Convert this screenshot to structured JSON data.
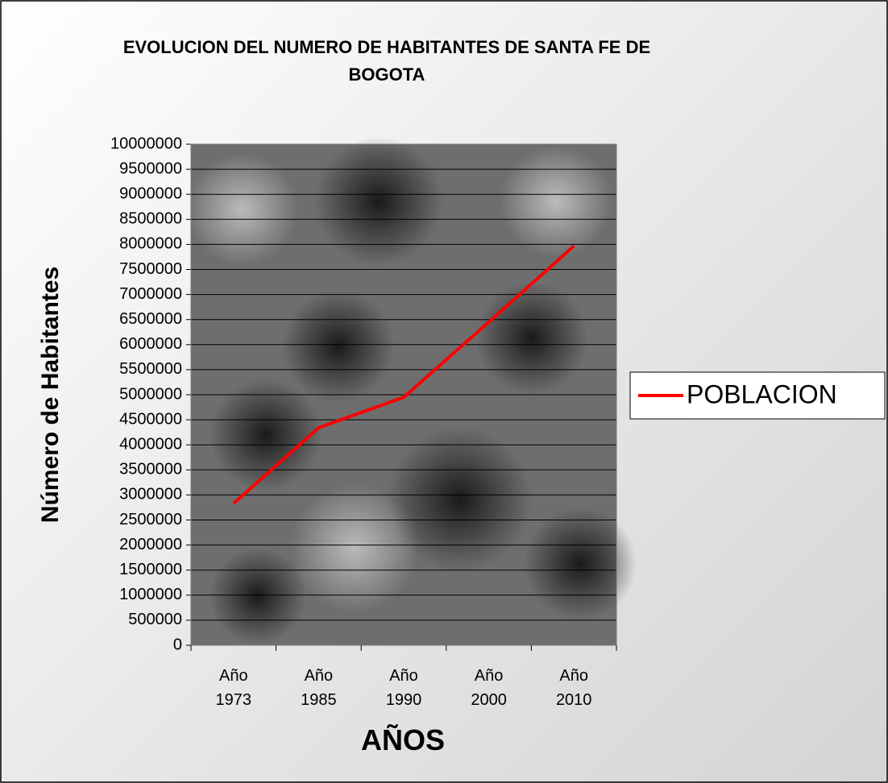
{
  "chart_data": {
    "type": "line",
    "title": "EVOLUCION DEL NUMERO DE HABITANTES DE SANTA FE DE BOGOTA",
    "x_label": "AÑOS",
    "y_label": "Número de Habitantes",
    "categories": [
      "Año 1973",
      "Año 1985",
      "Año 1990",
      "Año 2000",
      "Año 2010"
    ],
    "series": [
      {
        "name": "POBLACION",
        "color": "#ff0000",
        "values": [
          2830000,
          4340000,
          4950000,
          6450000,
          7970000
        ]
      }
    ],
    "ylim": [
      0,
      10000000
    ],
    "yticks": [
      0,
      500000,
      1000000,
      1500000,
      2000000,
      2500000,
      3000000,
      3500000,
      4000000,
      4500000,
      5000000,
      5500000,
      6000000,
      6500000,
      7000000,
      7500000,
      8000000,
      8500000,
      9000000,
      9500000,
      10000000
    ],
    "grid": true,
    "legend": "right"
  }
}
